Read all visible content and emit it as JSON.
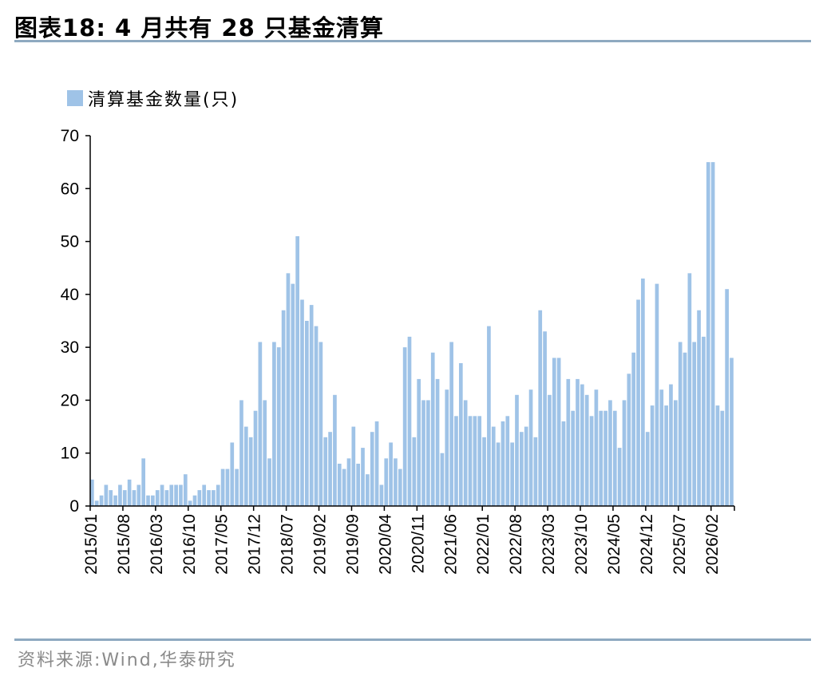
{
  "header": {
    "title": "图表18:  4 月共有 28 只基金清算"
  },
  "footer": {
    "source": "资料来源:Wind,华泰研究"
  },
  "colors": {
    "bar": "#9fc3e7",
    "rule": "#8ea9c0",
    "source_text": "#8a8a8a"
  },
  "chart_data": {
    "type": "bar",
    "legend": {
      "label": "清算基金数量(只)",
      "placement": "top-left"
    },
    "ylim": [
      0,
      70
    ],
    "yticks": [
      0,
      10,
      20,
      30,
      40,
      50,
      60,
      70
    ],
    "grid": false,
    "x_tick_labels": [
      "2015/01",
      "2015/08",
      "2016/03",
      "2016/10",
      "2017/05",
      "2017/12",
      "2018/07",
      "2019/02",
      "2019/09",
      "2020/04",
      "2020/11",
      "2021/06",
      "2022/01",
      "2022/08",
      "2023/03",
      "2023/10",
      "2024/05",
      "2024/12",
      "2025/07",
      "2026/02"
    ],
    "x_start": "2015/01",
    "x_end": "2026/04",
    "series": [
      {
        "values": [
          5,
          1,
          2,
          4,
          3,
          2,
          4,
          3,
          5,
          3,
          4,
          9,
          2,
          2,
          3,
          4,
          3,
          4,
          4,
          4,
          6,
          1,
          2,
          3,
          4,
          3,
          3,
          4,
          7,
          7,
          12,
          7,
          20,
          15,
          13,
          18,
          31,
          20,
          9,
          31,
          30,
          37,
          44,
          42,
          51,
          39,
          35,
          38,
          34,
          31,
          13,
          14,
          21,
          8,
          7,
          9,
          15,
          8,
          11,
          6,
          14,
          16,
          4,
          9,
          12,
          9,
          7,
          30,
          32,
          13,
          24,
          20,
          20,
          29,
          24,
          10,
          22,
          31,
          17,
          27,
          20,
          17,
          17,
          17,
          13,
          34,
          15,
          12,
          16,
          17,
          12,
          21,
          14,
          15,
          22,
          13,
          37,
          33,
          21,
          28,
          28,
          16,
          24,
          18,
          24,
          23,
          21,
          17,
          22,
          18,
          18,
          20,
          18,
          11,
          20,
          25,
          29,
          39,
          43,
          14,
          19,
          42,
          22,
          19,
          23,
          20,
          31,
          29,
          44,
          31,
          37,
          32,
          65,
          65,
          19,
          18,
          41,
          28
        ]
      }
    ]
  }
}
